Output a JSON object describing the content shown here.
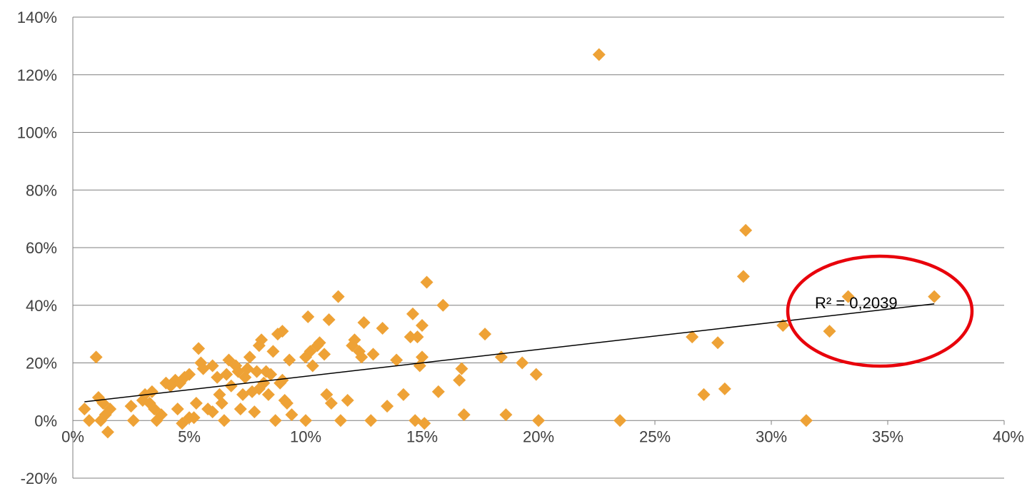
{
  "chart_data": {
    "type": "scatter",
    "title": "",
    "xlabel": "",
    "ylabel": "",
    "xlim": [
      0,
      0.4
    ],
    "ylim": [
      -0.2,
      1.4
    ],
    "x_ticks": [
      0,
      0.05,
      0.1,
      0.15,
      0.2,
      0.25,
      0.3,
      0.35,
      0.4
    ],
    "y_ticks": [
      -0.2,
      0,
      0.2,
      0.4,
      0.6,
      0.8,
      1.0,
      1.2,
      1.4
    ],
    "x_tick_labels": [
      "0%",
      "5%",
      "10%",
      "15%",
      "20%",
      "25%",
      "30%",
      "35%",
      "40%"
    ],
    "y_tick_labels": [
      "-20%",
      "0%",
      "20%",
      "40%",
      "60%",
      "80%",
      "100%",
      "120%",
      "140%"
    ],
    "grid": "horizontal",
    "legend": "none",
    "marker": "diamond",
    "colors": {
      "points": "#eea236",
      "trendline": "#000000",
      "highlight": "#e8000b",
      "grid": "#7f7f7f"
    },
    "trendline": {
      "type": "linear",
      "x": [
        0.005,
        0.37
      ],
      "y": [
        0.065,
        0.405
      ],
      "r2_label": "R² = 0,2039"
    },
    "highlight": {
      "shape": "ellipse",
      "target": "r2_label"
    },
    "x": [
      0.005,
      0.007,
      0.01,
      0.011,
      0.012,
      0.013,
      0.014,
      0.015,
      0.016,
      0.025,
      0.026,
      0.03,
      0.031,
      0.033,
      0.034,
      0.035,
      0.036,
      0.038,
      0.04,
      0.042,
      0.044,
      0.045,
      0.046,
      0.047,
      0.048,
      0.05,
      0.05,
      0.052,
      0.053,
      0.054,
      0.055,
      0.056,
      0.058,
      0.06,
      0.06,
      0.062,
      0.063,
      0.064,
      0.065,
      0.066,
      0.067,
      0.068,
      0.07,
      0.071,
      0.072,
      0.073,
      0.074,
      0.075,
      0.076,
      0.077,
      0.078,
      0.079,
      0.08,
      0.08,
      0.081,
      0.082,
      0.083,
      0.084,
      0.085,
      0.086,
      0.087,
      0.088,
      0.089,
      0.09,
      0.09,
      0.091,
      0.092,
      0.093,
      0.094,
      0.1,
      0.1,
      0.101,
      0.102,
      0.103,
      0.105,
      0.106,
      0.108,
      0.109,
      0.11,
      0.111,
      0.114,
      0.115,
      0.118,
      0.12,
      0.121,
      0.123,
      0.124,
      0.125,
      0.128,
      0.129,
      0.133,
      0.135,
      0.139,
      0.142,
      0.145,
      0.146,
      0.147,
      0.148,
      0.149,
      0.15,
      0.15,
      0.151,
      0.152,
      0.157,
      0.159,
      0.166,
      0.167,
      0.168,
      0.177,
      0.184,
      0.186,
      0.193,
      0.199,
      0.2,
      0.226,
      0.235,
      0.266,
      0.271,
      0.277,
      0.28,
      0.288,
      0.289,
      0.305,
      0.315,
      0.325,
      0.333,
      0.37
    ],
    "y": [
      0.04,
      0.0,
      0.22,
      0.08,
      0.0,
      0.06,
      0.02,
      -0.04,
      0.04,
      0.05,
      0.0,
      0.07,
      0.09,
      0.06,
      0.1,
      0.04,
      0.0,
      0.02,
      0.13,
      0.12,
      0.14,
      0.04,
      0.13,
      -0.01,
      0.15,
      0.16,
      0.01,
      0.01,
      0.06,
      0.25,
      0.2,
      0.18,
      0.04,
      0.19,
      0.03,
      0.15,
      0.09,
      0.06,
      0.0,
      0.16,
      0.21,
      0.12,
      0.19,
      0.17,
      0.04,
      0.09,
      0.15,
      0.18,
      0.22,
      0.1,
      0.03,
      0.17,
      0.11,
      0.26,
      0.28,
      0.13,
      0.17,
      0.09,
      0.16,
      0.24,
      0.0,
      0.3,
      0.13,
      0.31,
      0.14,
      0.07,
      0.06,
      0.21,
      0.02,
      0.22,
      0.0,
      0.36,
      0.24,
      0.19,
      0.26,
      0.27,
      0.23,
      0.09,
      0.35,
      0.06,
      0.43,
      0.0,
      0.07,
      0.26,
      0.28,
      0.24,
      0.22,
      0.34,
      0.0,
      0.23,
      0.32,
      0.05,
      0.21,
      0.09,
      0.29,
      0.37,
      0.0,
      0.29,
      0.19,
      0.33,
      0.22,
      -0.01,
      0.48,
      0.1,
      0.4,
      0.14,
      0.18,
      0.02,
      0.3,
      0.22,
      0.02,
      0.2,
      0.16,
      0.0,
      1.27,
      0.0,
      0.29,
      0.09,
      0.27,
      0.11,
      0.5,
      0.66,
      0.33,
      0.0,
      0.31,
      0.43,
      0.43
    ]
  }
}
